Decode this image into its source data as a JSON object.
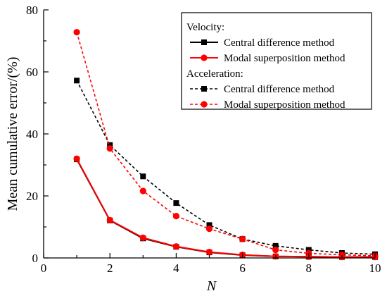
{
  "chart_data": {
    "type": "line",
    "xlabel": "N",
    "ylabel": "Mean cumulative error/(%)",
    "xlim": [
      0,
      10
    ],
    "ylim": [
      0,
      80
    ],
    "xticks": [
      0,
      2,
      4,
      6,
      8,
      10
    ],
    "yticks": [
      0,
      20,
      40,
      60,
      80
    ],
    "grid": false,
    "legend_position": "top-right",
    "legend": {
      "groups": [
        {
          "title": "Velocity:",
          "entries": [
            "Central difference method",
            "Modal superposition method"
          ]
        },
        {
          "title": "Acceleration:",
          "entries": [
            "Central difference method",
            "Modal superposition method"
          ]
        }
      ]
    },
    "x": [
      1,
      2,
      3,
      4,
      5,
      6,
      7,
      8,
      9,
      10
    ],
    "series": [
      {
        "group": "Velocity",
        "name": "Central difference method",
        "color": "#000000",
        "dash": "solid",
        "marker": "square",
        "values": [
          31.8,
          12.1,
          6.3,
          3.6,
          1.8,
          0.9,
          0.5,
          0.4,
          0.3,
          0.3
        ]
      },
      {
        "group": "Velocity",
        "name": "Modal superposition method",
        "color": "#ff0000",
        "dash": "solid",
        "marker": "circle",
        "values": [
          32.0,
          12.2,
          6.5,
          3.7,
          1.9,
          1.0,
          0.5,
          0.4,
          0.3,
          0.3
        ]
      },
      {
        "group": "Acceleration",
        "name": "Central difference method",
        "color": "#000000",
        "dash": "dashed",
        "marker": "square",
        "values": [
          57.2,
          36.4,
          26.3,
          17.7,
          10.6,
          6.1,
          3.9,
          2.6,
          1.6,
          1.2
        ]
      },
      {
        "group": "Acceleration",
        "name": "Modal superposition method",
        "color": "#ff0000",
        "dash": "dashed",
        "marker": "circle",
        "values": [
          72.8,
          35.3,
          21.6,
          13.5,
          9.4,
          6.1,
          2.6,
          1.5,
          1.0,
          0.7
        ]
      }
    ]
  }
}
